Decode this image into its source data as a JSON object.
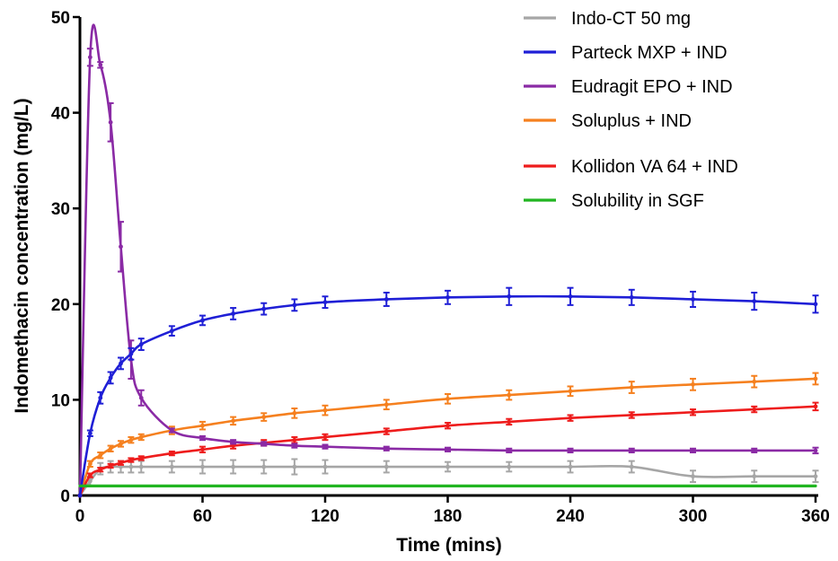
{
  "chart_data": {
    "type": "line",
    "title": "",
    "xlabel": "Time (mins)",
    "ylabel": "Indomethacin concentration (mg/L)",
    "xlim": [
      0,
      360
    ],
    "ylim": [
      0,
      50
    ],
    "x_ticks": [
      0,
      60,
      120,
      180,
      240,
      300,
      360
    ],
    "y_ticks": [
      0,
      10,
      20,
      30,
      40,
      50
    ],
    "grid": false,
    "legend_position": "top-right",
    "series": [
      {
        "name": "Indo-CT 50 mg",
        "color": "#a6a6a6",
        "points": [
          [
            0,
            0
          ],
          [
            5,
            1.5
          ],
          [
            10,
            2.8
          ],
          [
            15,
            3.0
          ],
          [
            20,
            3.0
          ],
          [
            25,
            3.0
          ],
          [
            30,
            3.0
          ],
          [
            45,
            3.0
          ],
          [
            60,
            3.0
          ],
          [
            75,
            3.0
          ],
          [
            90,
            3.0
          ],
          [
            105,
            3.0
          ],
          [
            120,
            3.0
          ],
          [
            150,
            3.0
          ],
          [
            180,
            3.0
          ],
          [
            210,
            3.0
          ],
          [
            240,
            3.0
          ],
          [
            270,
            3.0
          ],
          [
            300,
            2.0
          ],
          [
            330,
            2.0
          ],
          [
            360,
            2.0
          ]
        ],
        "errors": [
          0,
          0.5,
          0.6,
          0.6,
          0.6,
          0.6,
          0.6,
          0.6,
          0.7,
          0.7,
          0.7,
          0.8,
          0.7,
          0.6,
          0.5,
          0.5,
          0.6,
          0.6,
          0.6,
          0.6,
          0.6
        ]
      },
      {
        "name": "Parteck MXP + IND",
        "color": "#1f1fd6",
        "points": [
          [
            0,
            0
          ],
          [
            5,
            6.5
          ],
          [
            10,
            10.2
          ],
          [
            15,
            12.3
          ],
          [
            20,
            13.8
          ],
          [
            25,
            14.8
          ],
          [
            30,
            15.8
          ],
          [
            45,
            17.2
          ],
          [
            60,
            18.3
          ],
          [
            75,
            19.0
          ],
          [
            90,
            19.5
          ],
          [
            105,
            19.9
          ],
          [
            120,
            20.2
          ],
          [
            150,
            20.5
          ],
          [
            180,
            20.7
          ],
          [
            210,
            20.8
          ],
          [
            240,
            20.8
          ],
          [
            270,
            20.7
          ],
          [
            300,
            20.5
          ],
          [
            330,
            20.3
          ],
          [
            360,
            20.0
          ]
        ],
        "errors": [
          0,
          0.3,
          0.6,
          0.6,
          0.6,
          0.6,
          0.6,
          0.5,
          0.5,
          0.6,
          0.6,
          0.6,
          0.6,
          0.7,
          0.7,
          0.9,
          0.9,
          0.8,
          0.8,
          0.9,
          0.9
        ]
      },
      {
        "name": "Eudragit EPO + IND",
        "color": "#8a2aa5",
        "points": [
          [
            0,
            0
          ],
          [
            5,
            45.8
          ],
          [
            10,
            45.0
          ],
          [
            15,
            39.0
          ],
          [
            20,
            26.0
          ],
          [
            25,
            14.2
          ],
          [
            30,
            10.2
          ],
          [
            45,
            6.8
          ],
          [
            60,
            6.0
          ],
          [
            75,
            5.6
          ],
          [
            90,
            5.4
          ],
          [
            105,
            5.2
          ],
          [
            120,
            5.1
          ],
          [
            150,
            4.9
          ],
          [
            180,
            4.8
          ],
          [
            210,
            4.7
          ],
          [
            240,
            4.7
          ],
          [
            270,
            4.7
          ],
          [
            300,
            4.7
          ],
          [
            330,
            4.7
          ],
          [
            360,
            4.7
          ]
        ],
        "errors": [
          0,
          0.9,
          0.3,
          2.0,
          2.6,
          2.0,
          0.8,
          0.2,
          0.2,
          0.2,
          0.2,
          0.2,
          0.2,
          0.2,
          0.2,
          0.2,
          0.2,
          0.2,
          0.2,
          0.2,
          0.3
        ]
      },
      {
        "name": "Soluplus + IND",
        "color": "#f5801f",
        "points": [
          [
            0,
            0
          ],
          [
            5,
            3.3
          ],
          [
            10,
            4.2
          ],
          [
            15,
            4.9
          ],
          [
            20,
            5.4
          ],
          [
            25,
            5.8
          ],
          [
            30,
            6.1
          ],
          [
            45,
            6.8
          ],
          [
            60,
            7.3
          ],
          [
            75,
            7.8
          ],
          [
            90,
            8.2
          ],
          [
            105,
            8.6
          ],
          [
            120,
            8.9
          ],
          [
            150,
            9.5
          ],
          [
            180,
            10.1
          ],
          [
            210,
            10.5
          ],
          [
            240,
            10.9
          ],
          [
            270,
            11.3
          ],
          [
            300,
            11.6
          ],
          [
            330,
            11.9
          ],
          [
            360,
            12.2
          ]
        ],
        "errors": [
          0,
          0.3,
          0.3,
          0.3,
          0.3,
          0.3,
          0.3,
          0.4,
          0.4,
          0.4,
          0.4,
          0.5,
          0.5,
          0.5,
          0.5,
          0.5,
          0.5,
          0.6,
          0.6,
          0.6,
          0.6
        ]
      },
      {
        "name": "Kollidon VA 64 + IND",
        "color": "#ee1c1c",
        "points": [
          [
            0,
            0
          ],
          [
            5,
            2.1
          ],
          [
            10,
            2.7
          ],
          [
            15,
            3.1
          ],
          [
            20,
            3.4
          ],
          [
            25,
            3.7
          ],
          [
            30,
            3.9
          ],
          [
            45,
            4.4
          ],
          [
            60,
            4.8
          ],
          [
            75,
            5.2
          ],
          [
            90,
            5.5
          ],
          [
            105,
            5.8
          ],
          [
            120,
            6.1
          ],
          [
            150,
            6.7
          ],
          [
            180,
            7.3
          ],
          [
            210,
            7.7
          ],
          [
            240,
            8.1
          ],
          [
            270,
            8.4
          ],
          [
            300,
            8.7
          ],
          [
            330,
            9.0
          ],
          [
            360,
            9.3
          ]
        ],
        "errors": [
          0,
          0.2,
          0.2,
          0.2,
          0.2,
          0.2,
          0.2,
          0.2,
          0.3,
          0.3,
          0.3,
          0.3,
          0.3,
          0.3,
          0.3,
          0.3,
          0.3,
          0.3,
          0.3,
          0.3,
          0.4
        ]
      },
      {
        "name": "Solubility in SGF",
        "color": "#22b522",
        "points": [
          [
            0,
            1.0
          ],
          [
            360,
            1.0
          ]
        ],
        "errors": [
          0,
          0
        ]
      }
    ]
  }
}
